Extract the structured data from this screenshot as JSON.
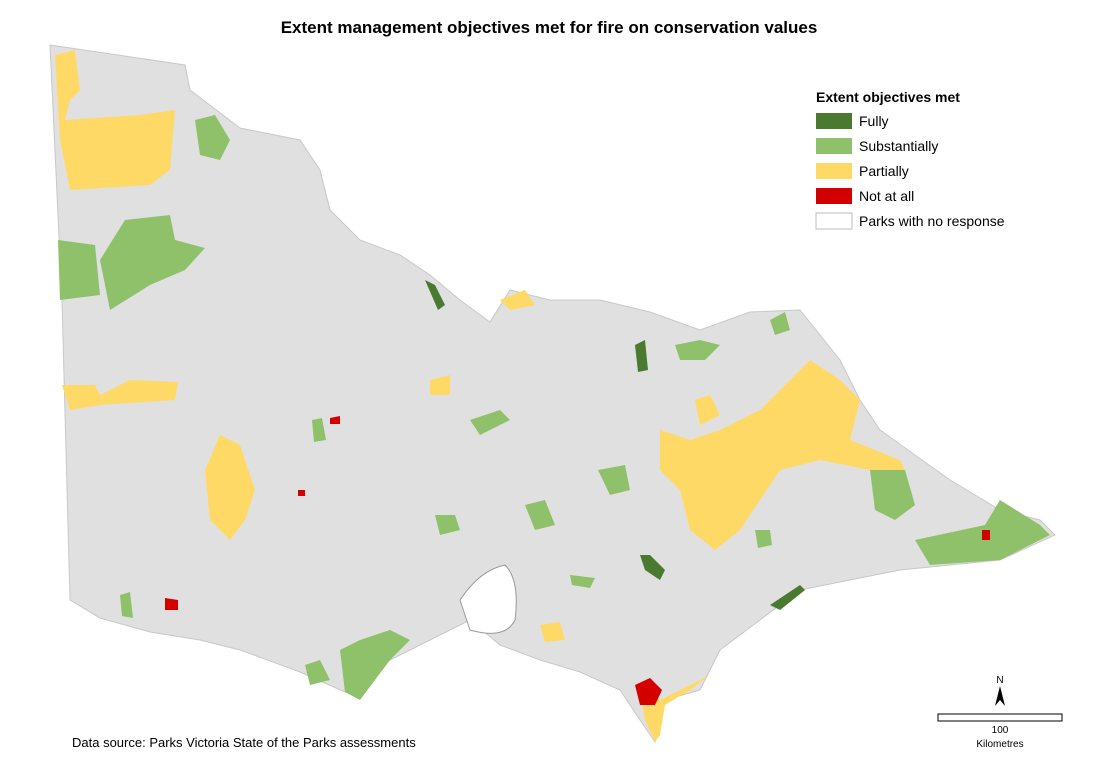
{
  "header": {
    "title": "Extent management objectives met for fire on conservation values"
  },
  "legend": {
    "title": "Extent objectives met",
    "items": [
      {
        "label": "Fully",
        "color": "#4a7a2f"
      },
      {
        "label": "Substantially",
        "color": "#8fc16a"
      },
      {
        "label": "Partially",
        "color": "#ffd966"
      },
      {
        "label": "Not at all",
        "color": "#d40000"
      },
      {
        "label": "Parks with no response",
        "color": "#ffffff"
      }
    ]
  },
  "footer": {
    "source": "Data source: Parks Victoria State of the Parks assessments"
  },
  "scale": {
    "north": "N",
    "distance": "100",
    "unit": "Kilometres"
  }
}
